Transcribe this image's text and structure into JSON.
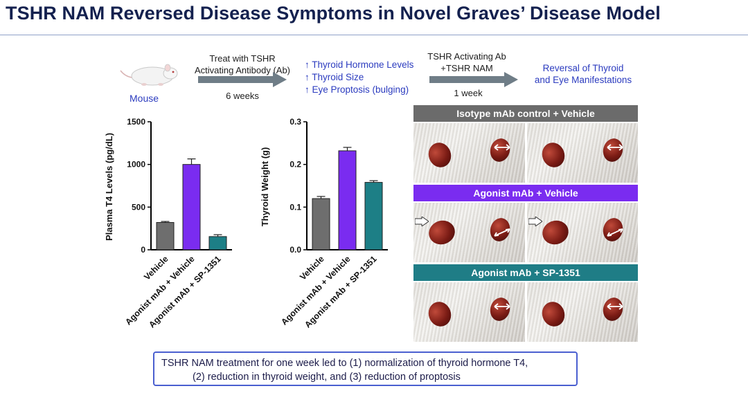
{
  "title": "TSHR NAM Reversed Disease Symptoms in Novel Graves’ Disease Model",
  "flow": {
    "mouse_label": "Mouse",
    "step1_line1": "Treat with TSHR",
    "step1_line2": "Activating Antibody (Ab)",
    "step1_duration": "6 weeks",
    "effect1": "↑ Thyroid Hormone Levels",
    "effect2": "↑ Thyroid Size",
    "effect3": "↑ Eye Proptosis (bulging)",
    "step2_line1": "TSHR Activating Ab",
    "step2_line2": "+TSHR NAM",
    "step2_duration": "1 week",
    "result_line1": "Reversal of Thyroid",
    "result_line2": "and Eye Manifestations"
  },
  "chart_data": [
    {
      "type": "bar",
      "ylabel": "Plasma T4 Levels (pg/dL)",
      "categories": [
        "Vehicle",
        "Agonist mAb + Vehicle",
        "Agonist mAb + SP-1351"
      ],
      "values": [
        320,
        1000,
        155
      ],
      "errors": [
        12,
        65,
        22
      ],
      "ylim": [
        0,
        1500
      ],
      "yticks": [
        0,
        500,
        1000,
        1500
      ],
      "ytick_labels": [
        "0",
        "500",
        "1000",
        "1500"
      ],
      "colors": [
        "#6e6e6e",
        "#7a2cf0",
        "#1d7f86"
      ]
    },
    {
      "type": "bar",
      "ylabel": "Thyroid Weight (g)",
      "categories": [
        "Vehicle",
        "Agonist mAb + Vehicle",
        "Agonist mAb + SP-1351"
      ],
      "values": [
        0.12,
        0.232,
        0.158
      ],
      "errors": [
        0.005,
        0.008,
        0.004
      ],
      "ylim": [
        0,
        0.3
      ],
      "yticks": [
        0,
        0.1,
        0.2,
        0.3
      ],
      "ytick_labels": [
        "0.0",
        "0.1",
        "0.2",
        "0.3"
      ],
      "colors": [
        "#6e6e6e",
        "#7a2cf0",
        "#1d7f86"
      ]
    }
  ],
  "panels": [
    {
      "label": "Isotype mAb control + Vehicle",
      "color": "#6b6b6b"
    },
    {
      "label": "Agonist mAb + Vehicle",
      "color": "#7a2cf0"
    },
    {
      "label": "Agonist mAb + SP-1351",
      "color": "#1f7d86"
    }
  ],
  "summary": {
    "line1": "TSHR NAM treatment for one week led to (1) normalization of thyroid hormone T4,",
    "line2": "(2) reduction in thyroid weight, and (3) reduction of proptosis"
  }
}
